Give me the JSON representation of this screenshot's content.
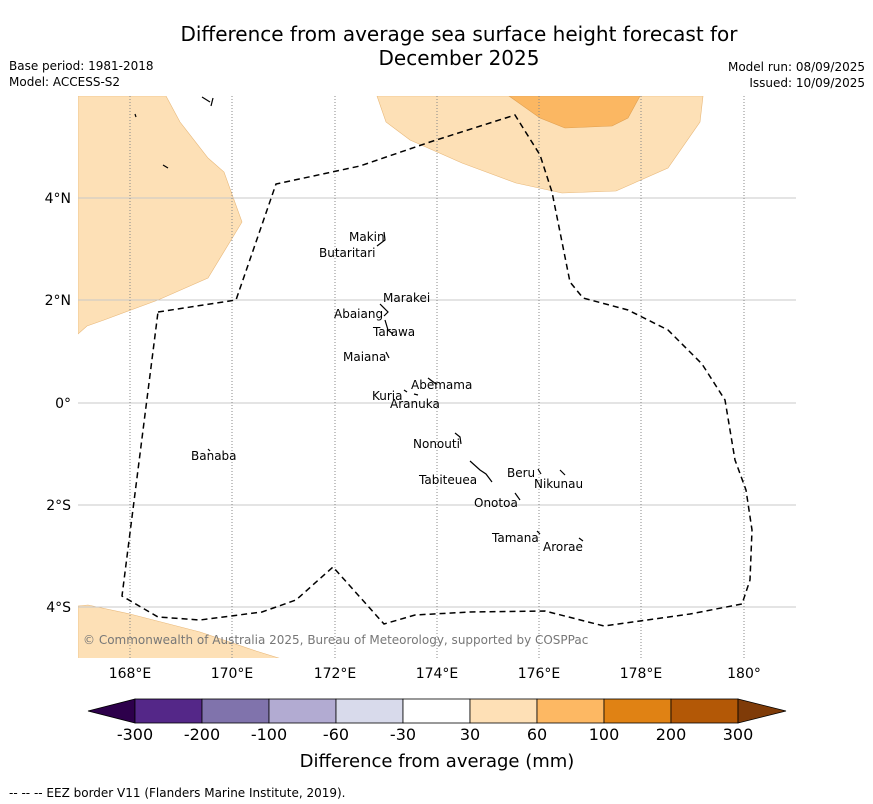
{
  "header": {
    "title_line1": "Difference from average sea surface height forecast for",
    "title_line2": "December 2025",
    "base_period": "Base period: 1981-2018",
    "model": "Model: ACCESS-S2",
    "model_run": "Model run: 08/09/2025",
    "issued": "Issued: 10/09/2025"
  },
  "map": {
    "lat_labels": [
      "4°N",
      "2°N",
      "0°",
      "2°S",
      "4°S"
    ],
    "lon_labels": [
      "168°E",
      "170°E",
      "172°E",
      "174°E",
      "176°E",
      "178°E",
      "180°"
    ],
    "islands": [
      "Makin",
      "Butaritari",
      "Marakei",
      "Abaiang",
      "Tarawa",
      "Maiana",
      "Abemama",
      "Kuria",
      "Aranuka",
      "Banaba",
      "Nonouti",
      "Tabiteuea",
      "Beru",
      "Nikunau",
      "Onotoa",
      "Tamana",
      "Arorae"
    ],
    "copyright": "© Commonwealth of Australia 2025, Bureau of Meteorology, supported by COSPPac",
    "colors": {
      "anomaly_30_60": "#fde0b6",
      "anomaly_60_100": "#fbb762",
      "eez_border": "#000000"
    }
  },
  "colorbar": {
    "tick_labels": [
      "-300",
      "-200",
      "-100",
      "-60",
      "-30",
      "30",
      "60",
      "100",
      "200",
      "300"
    ],
    "title": "Difference from average (mm)",
    "bins": [
      "#2d004b",
      "#542788",
      "#8073ac",
      "#b2abd2",
      "#d8daeb",
      "#ffffff",
      "#fee0b6",
      "#fdb863",
      "#e08214",
      "#b35806",
      "#7f3b08"
    ]
  },
  "footer": {
    "eez_note": "--  --  -- EEZ border V11 (Flanders Marine Institute, 2019)."
  }
}
